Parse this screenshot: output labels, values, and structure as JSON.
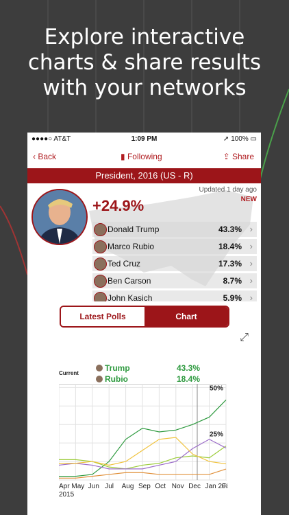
{
  "headline": [
    "Explore interactive",
    "charts & share results",
    "with your networks"
  ],
  "status": {
    "carrier": "●●●●○ AT&T",
    "time": "1:09 PM",
    "battery": "100%"
  },
  "nav": {
    "back": "Back",
    "following": "Following",
    "share": "Share"
  },
  "title": "President, 2016 (US - R)",
  "updated": "Updated 1 day ago",
  "new_badge": "NEW",
  "lead_margin": "+24.9%",
  "candidates": [
    {
      "name": "Donald Trump",
      "pct": "43.3%"
    },
    {
      "name": "Marco Rubio",
      "pct": "18.4%"
    },
    {
      "name": "Ted Cruz",
      "pct": "17.3%"
    },
    {
      "name": "Ben Carson",
      "pct": "8.7%"
    },
    {
      "name": "John Kasich",
      "pct": "5.9%"
    }
  ],
  "tabs": {
    "latest": "Latest Polls",
    "chart": "Chart"
  },
  "legend": {
    "current": "Current",
    "rows": [
      {
        "name": "Trump",
        "value": "43.3%"
      },
      {
        "name": "Rubio",
        "value": "18.4%"
      }
    ]
  },
  "colors": {
    "brand": "#9c1519",
    "trump": "#2e9a3f",
    "rubio": "#9ccc3a",
    "cruz": "#9b6cc9",
    "carson": "#f0c23b",
    "kasich": "#e0903a"
  },
  "icons": {
    "back": "chevron-left-icon",
    "follow": "bookmark-icon",
    "share": "share-icon",
    "expand": "expand-icon"
  },
  "chart_data": {
    "type": "line",
    "x": [
      "Apr 2015",
      "May",
      "Jun",
      "Jul",
      "Aug",
      "Sep",
      "Oct",
      "Nov",
      "Dec",
      "Jan 2016",
      "Feb"
    ],
    "tick_labels": [
      "Apr",
      "May",
      "Jun",
      "Jul",
      "Aug",
      "Sep",
      "Oct",
      "Nov",
      "Dec",
      "Jan 2016",
      "Feb"
    ],
    "year_label": "2015",
    "y_ticks": [
      "50%",
      "25%"
    ],
    "ylim": [
      0,
      52
    ],
    "series": [
      {
        "name": "Trump",
        "values": [
          2,
          2,
          3,
          10,
          22,
          28,
          26,
          27,
          30,
          34,
          43.3
        ]
      },
      {
        "name": "Rubio",
        "values": [
          11,
          11,
          10,
          7,
          6,
          8,
          9,
          12,
          13,
          12,
          18.4
        ]
      },
      {
        "name": "",
        "values": [
          8,
          9,
          8,
          6,
          6,
          6,
          8,
          10,
          17,
          22,
          17.3
        ]
      },
      {
        "name": "",
        "values": [
          9,
          9,
          10,
          8,
          10,
          16,
          22,
          23,
          14,
          10,
          8.7
        ]
      },
      {
        "name": "",
        "values": [
          1,
          1,
          2,
          3,
          4,
          4,
          3,
          3,
          3,
          3,
          5.9
        ]
      }
    ],
    "grid": true
  }
}
